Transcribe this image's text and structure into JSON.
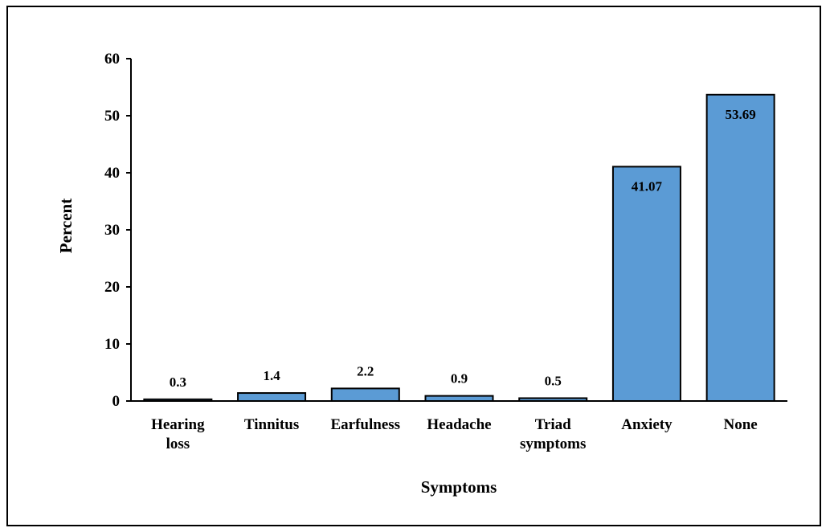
{
  "chart_data": {
    "type": "bar",
    "title": "",
    "xlabel": "Symptoms",
    "ylabel": "Percent",
    "ylim": [
      0,
      60
    ],
    "yticks": [
      0,
      10,
      20,
      30,
      40,
      50,
      60
    ],
    "categories": [
      [
        "Hearing",
        "loss"
      ],
      [
        "Tinnitus"
      ],
      [
        "Earfulness"
      ],
      [
        "Headache"
      ],
      [
        "Triad",
        "symptoms"
      ],
      [
        "Anxiety"
      ],
      [
        "None"
      ]
    ],
    "values": [
      0.3,
      1.4,
      2.2,
      0.9,
      0.5,
      41.07,
      53.69
    ],
    "value_labels": [
      "0.3",
      "1.4",
      "2.2",
      "0.9",
      "0.5",
      "41.07",
      "53.69"
    ],
    "bar_color": "#5B9BD5",
    "bar_edge_color": "#000000",
    "grid": false,
    "legend": "none"
  }
}
